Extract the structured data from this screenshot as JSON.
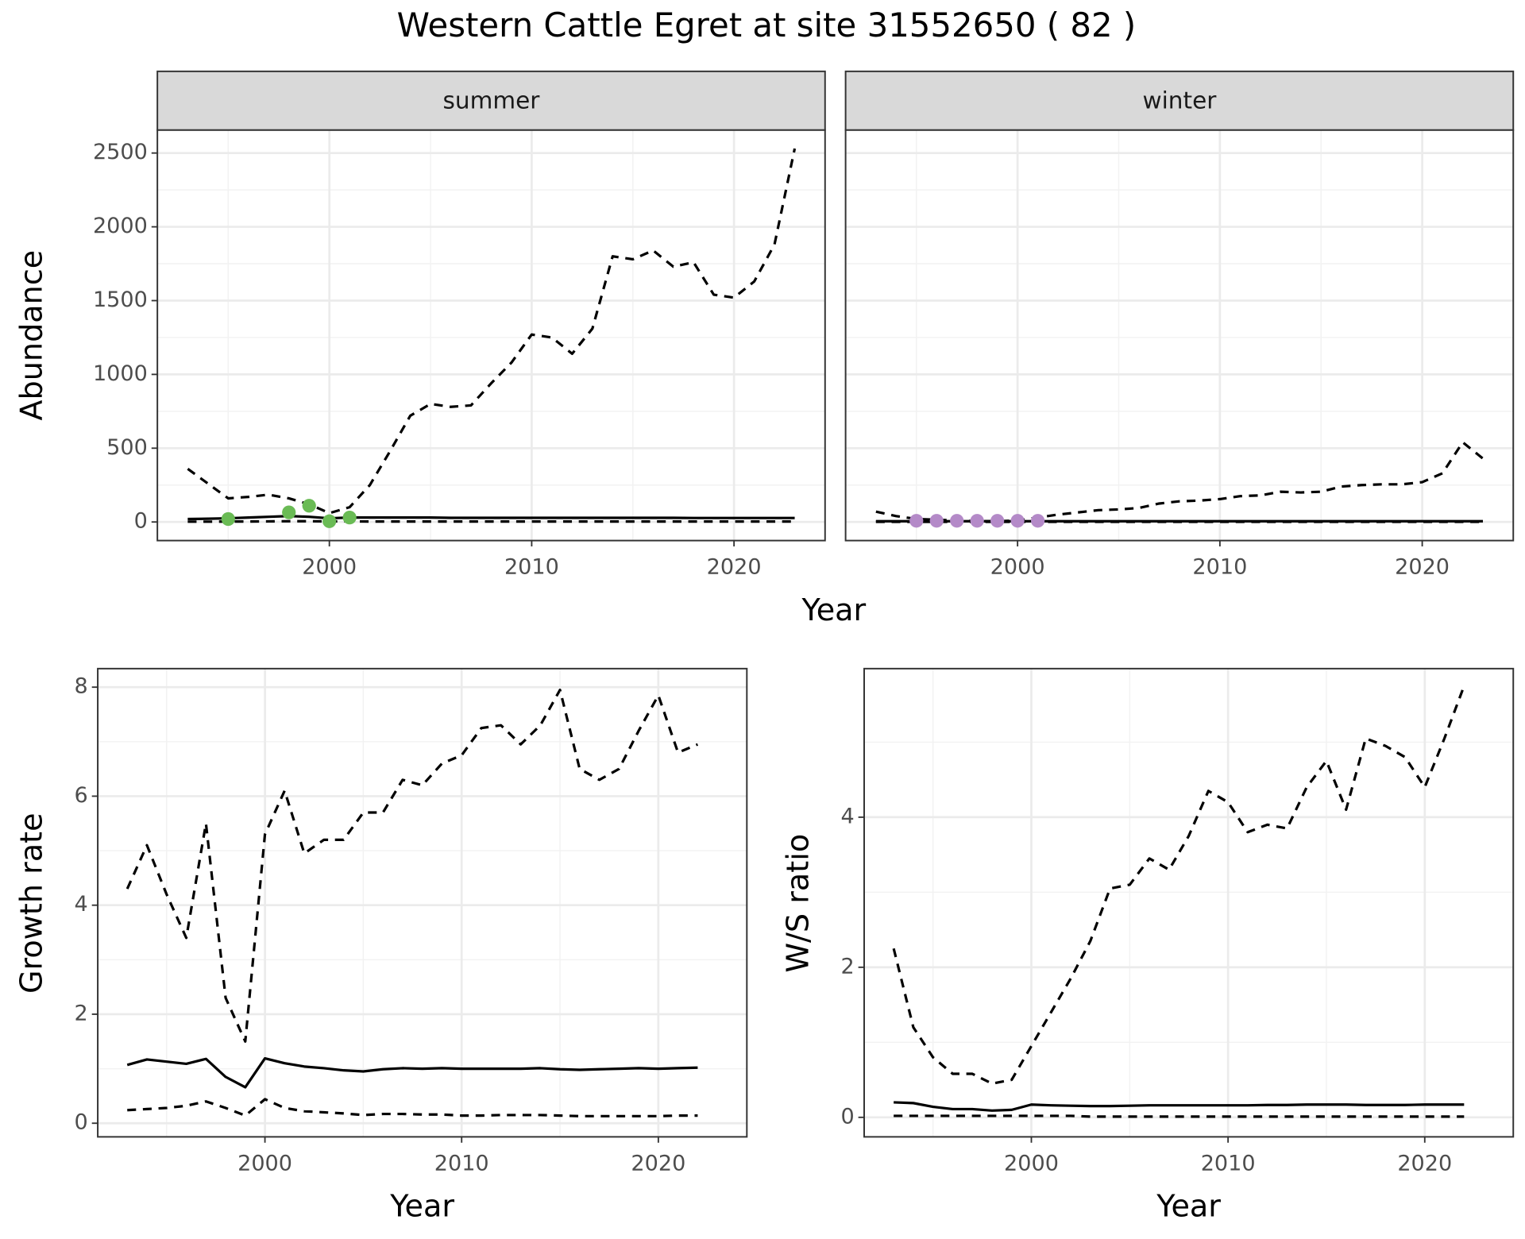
{
  "title": "Western Cattle Egret at site 31552650 ( 82 )",
  "chart_data": [
    {
      "type": "line",
      "facet": "summer",
      "ylabel": "Abundance",
      "xlabel": "Year",
      "x": [
        1993,
        1994,
        1995,
        1996,
        1997,
        1998,
        1999,
        2000,
        2001,
        2002,
        2003,
        2004,
        2005,
        2006,
        2007,
        2008,
        2009,
        2010,
        2011,
        2012,
        2013,
        2014,
        2015,
        2016,
        2017,
        2018,
        2019,
        2020,
        2021,
        2022,
        2023
      ],
      "xlim": [
        1991.5,
        2024.5
      ],
      "xticks": [
        2000,
        2010,
        2020
      ],
      "ylim": [
        -126,
        2656
      ],
      "yticks": [
        0,
        500,
        1000,
        1500,
        2000,
        2500
      ],
      "show_ytick_labels": true,
      "grid": true,
      "minor_grid": true,
      "series": [
        {
          "color": "#000000",
          "dashed": true,
          "values": [
            360,
            260,
            160,
            170,
            185,
            160,
            120,
            60,
            100,
            250,
            480,
            720,
            800,
            780,
            790,
            940,
            1080,
            1270,
            1250,
            1140,
            1310,
            1800,
            1780,
            1840,
            1730,
            1760,
            1540,
            1520,
            1630,
            1880,
            2530
          ]
        },
        {
          "color": "#000000",
          "dashed": false,
          "values": [
            20,
            22,
            25,
            30,
            35,
            40,
            35,
            25,
            30,
            30,
            30,
            30,
            30,
            28,
            28,
            28,
            28,
            28,
            28,
            28,
            28,
            28,
            28,
            28,
            28,
            27,
            27,
            27,
            27,
            27,
            27
          ]
        },
        {
          "color": "#000000",
          "dashed": true,
          "values": [
            2,
            2,
            3,
            3,
            4,
            5,
            5,
            4,
            4,
            3,
            3,
            3,
            3,
            3,
            3,
            3,
            3,
            3,
            3,
            3,
            3,
            3,
            3,
            3,
            3,
            3,
            3,
            3,
            3,
            3,
            3
          ]
        }
      ],
      "points": {
        "color": "#6abb55",
        "x": [
          1995,
          1998,
          1999,
          2000,
          2001
        ],
        "values": [
          20,
          65,
          110,
          5,
          30
        ]
      }
    },
    {
      "type": "line",
      "facet": "winter",
      "x": [
        1993,
        1994,
        1995,
        1996,
        1997,
        1998,
        1999,
        2000,
        2001,
        2002,
        2003,
        2004,
        2005,
        2006,
        2007,
        2008,
        2009,
        2010,
        2011,
        2012,
        2013,
        2014,
        2015,
        2016,
        2017,
        2018,
        2019,
        2020,
        2021,
        2022,
        2023
      ],
      "xlim": [
        1991.5,
        2024.5
      ],
      "xticks": [
        2000,
        2010,
        2020
      ],
      "ylim": [
        -126,
        2656
      ],
      "yticks": [
        0,
        500,
        1000,
        1500,
        2000,
        2500
      ],
      "show_ytick_labels": false,
      "grid": true,
      "minor_grid": true,
      "series": [
        {
          "color": "#000000",
          "dashed": true,
          "values": [
            70,
            40,
            20,
            15,
            10,
            5,
            5,
            10,
            30,
            50,
            65,
            80,
            85,
            95,
            125,
            140,
            145,
            155,
            175,
            180,
            205,
            200,
            205,
            240,
            250,
            255,
            255,
            270,
            330,
            540,
            430
          ]
        },
        {
          "color": "#000000",
          "dashed": false,
          "values": [
            5,
            5,
            5,
            5,
            5,
            5,
            5,
            5,
            5,
            5,
            5,
            5,
            5,
            5,
            5,
            5,
            5,
            5,
            5,
            5,
            5,
            5,
            5,
            5,
            5,
            5,
            5,
            5,
            5,
            5,
            5
          ]
        },
        {
          "color": "#000000",
          "dashed": true,
          "values": [
            1,
            1,
            1,
            1,
            1,
            1,
            1,
            1,
            1,
            1,
            1,
            1,
            1,
            1,
            1,
            1,
            1,
            1,
            1,
            1,
            1,
            1,
            1,
            1,
            1,
            1,
            1,
            1,
            1,
            1,
            1
          ]
        }
      ],
      "points": {
        "color": "#b48ac8",
        "x": [
          1995,
          1996,
          1997,
          1998,
          1999,
          2000,
          2001
        ],
        "values": [
          8,
          8,
          8,
          8,
          8,
          8,
          8
        ]
      }
    },
    {
      "type": "line",
      "ylabel": "Growth rate",
      "xlabel": "Year",
      "x": [
        1993,
        1994,
        1995,
        1996,
        1997,
        1998,
        1999,
        2000,
        2001,
        2002,
        2003,
        2004,
        2005,
        2006,
        2007,
        2008,
        2009,
        2010,
        2011,
        2012,
        2013,
        2014,
        2015,
        2016,
        2017,
        2018,
        2019,
        2020,
        2021,
        2022
      ],
      "xlim": [
        1991.5,
        2024.5
      ],
      "xticks": [
        2000,
        2010,
        2020
      ],
      "ylim": [
        -0.25,
        8.34
      ],
      "yticks": [
        0,
        2,
        4,
        6,
        8
      ],
      "show_ytick_labels": true,
      "grid": true,
      "minor_grid": true,
      "series": [
        {
          "color": "#000000",
          "dashed": true,
          "values": [
            4.3,
            5.1,
            4.2,
            3.4,
            5.5,
            2.3,
            1.5,
            5.3,
            6.1,
            4.95,
            5.2,
            5.2,
            5.7,
            5.7,
            6.3,
            6.2,
            6.6,
            6.75,
            7.25,
            7.3,
            6.95,
            7.3,
            7.95,
            6.5,
            6.3,
            6.5,
            7.2,
            7.85,
            6.8,
            6.95
          ]
        },
        {
          "color": "#000000",
          "dashed": false,
          "values": [
            1.07,
            1.17,
            1.13,
            1.09,
            1.18,
            0.85,
            0.66,
            1.19,
            1.1,
            1.04,
            1.01,
            0.97,
            0.95,
            0.99,
            1.01,
            1.0,
            1.01,
            1.0,
            1.0,
            1.0,
            1.0,
            1.01,
            0.99,
            0.98,
            0.99,
            1.0,
            1.01,
            1.0,
            1.01,
            1.02
          ]
        },
        {
          "color": "#000000",
          "dashed": true,
          "values": [
            0.24,
            0.26,
            0.28,
            0.32,
            0.4,
            0.28,
            0.14,
            0.44,
            0.28,
            0.22,
            0.2,
            0.18,
            0.15,
            0.17,
            0.17,
            0.16,
            0.16,
            0.14,
            0.14,
            0.15,
            0.15,
            0.15,
            0.14,
            0.13,
            0.13,
            0.13,
            0.13,
            0.13,
            0.14,
            0.14
          ]
        }
      ]
    },
    {
      "type": "line",
      "ylabel": "W/S ratio",
      "xlabel": "Year",
      "x": [
        1993,
        1994,
        1995,
        1996,
        1997,
        1998,
        1999,
        2000,
        2001,
        2002,
        2003,
        2004,
        2005,
        2006,
        2007,
        2008,
        2009,
        2010,
        2011,
        2012,
        2013,
        2014,
        2015,
        2016,
        2017,
        2018,
        2019,
        2020,
        2021,
        2022
      ],
      "xlim": [
        1991.5,
        2024.5
      ],
      "xticks": [
        2000,
        2010,
        2020
      ],
      "ylim": [
        -0.26,
        5.98
      ],
      "yticks": [
        0,
        2,
        4
      ],
      "show_ytick_labels": true,
      "grid": true,
      "minor_grid": true,
      "series": [
        {
          "color": "#000000",
          "dashed": true,
          "values": [
            2.25,
            1.2,
            0.8,
            0.58,
            0.58,
            0.45,
            0.5,
            0.95,
            1.4,
            1.85,
            2.35,
            3.05,
            3.1,
            3.45,
            3.3,
            3.75,
            4.35,
            4.2,
            3.8,
            3.9,
            3.85,
            4.4,
            4.75,
            4.1,
            5.05,
            4.95,
            4.8,
            4.4,
            5.05,
            5.75
          ]
        },
        {
          "color": "#000000",
          "dashed": false,
          "values": [
            0.2,
            0.19,
            0.14,
            0.11,
            0.11,
            0.09,
            0.1,
            0.17,
            0.16,
            0.155,
            0.15,
            0.15,
            0.155,
            0.16,
            0.16,
            0.16,
            0.16,
            0.16,
            0.16,
            0.165,
            0.165,
            0.17,
            0.17,
            0.17,
            0.165,
            0.165,
            0.165,
            0.17,
            0.17,
            0.17
          ]
        },
        {
          "color": "#000000",
          "dashed": true,
          "values": [
            0.02,
            0.02,
            0.02,
            0.02,
            0.02,
            0.02,
            0.02,
            0.02,
            0.02,
            0.02,
            0.01,
            0.01,
            0.01,
            0.01,
            0.01,
            0.01,
            0.01,
            0.01,
            0.01,
            0.01,
            0.01,
            0.01,
            0.01,
            0.01,
            0.01,
            0.01,
            0.01,
            0.01,
            0.01,
            0.01
          ]
        }
      ]
    }
  ]
}
